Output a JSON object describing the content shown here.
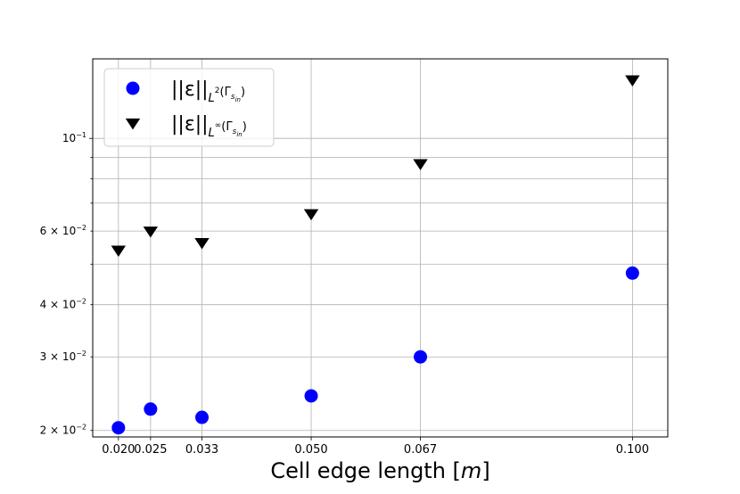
{
  "chart_data": {
    "type": "scatter",
    "x_scale": "linear",
    "y_scale": "log",
    "xlim": [
      0.016,
      0.1055
    ],
    "ylim": [
      0.0193,
      0.155
    ],
    "grid": true,
    "legend_position": "top-left",
    "xlabel": "Cell edge length [m]",
    "xlabel_parts": [
      "Cell edge length [",
      "m",
      "]"
    ],
    "ylabel": "",
    "x_ticks": [
      0.02,
      0.025,
      0.033,
      0.05,
      0.067,
      0.1
    ],
    "x_tick_labels": [
      "0.020",
      "0.025",
      "0.033",
      "0.050",
      "0.067",
      "0.100"
    ],
    "y_major_ticks": [
      {
        "value": 0.1,
        "mant": "10",
        "exp": "−1"
      }
    ],
    "y_minor_ticks": [
      {
        "value": 0.02,
        "mant": "2 × 10",
        "exp": "−2",
        "label": true
      },
      {
        "value": 0.03,
        "mant": "3 × 10",
        "exp": "−2",
        "label": true
      },
      {
        "value": 0.04,
        "mant": "4 × 10",
        "exp": "−2",
        "label": true
      },
      {
        "value": 0.05,
        "label": false
      },
      {
        "value": 0.06,
        "mant": "6 × 10",
        "exp": "−2",
        "label": true
      },
      {
        "value": 0.07,
        "label": false
      },
      {
        "value": 0.08,
        "label": false
      },
      {
        "value": 0.09,
        "label": false
      }
    ],
    "series": [
      {
        "name": "||ε||_{L²(Γ_{s_in})}",
        "legend_label": {
          "norm": "||ε||",
          "sub": "L",
          "sup": "2",
          "paren_open": "(Γ",
          "sub2": "s",
          "sub3": "in",
          "paren_close": ")"
        },
        "marker": "circle",
        "color": "#0000ff",
        "x": [
          0.02,
          0.025,
          0.033,
          0.05,
          0.067,
          0.1
        ],
        "y": [
          0.0203,
          0.0225,
          0.0215,
          0.0242,
          0.03,
          0.0476
        ]
      },
      {
        "name": "||ε||_{L^∞(Γ_{s_in})}",
        "legend_label": {
          "norm": "||ε||",
          "sub": "L",
          "sup": "∞",
          "paren_open": "(Γ",
          "sub2": "s",
          "sub3": "in",
          "paren_close": ")"
        },
        "marker": "triangle-down",
        "color": "#000000",
        "x": [
          0.02,
          0.025,
          0.033,
          0.05,
          0.067,
          0.1
        ],
        "y": [
          0.054,
          0.06,
          0.0563,
          0.066,
          0.087,
          0.138
        ]
      }
    ]
  }
}
